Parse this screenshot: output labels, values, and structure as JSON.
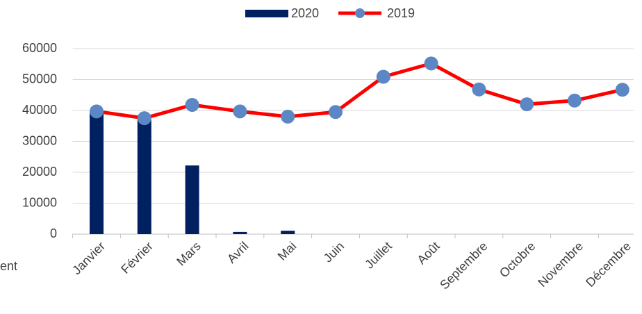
{
  "chart_data": {
    "type": "bar_line",
    "annotation": "ent",
    "categories": [
      "Janvier",
      "Février",
      "Mars",
      "Avril",
      "Mai",
      "Juin",
      "Juillet",
      "Août",
      "Septembre",
      "Octobre",
      "Novembre",
      "Décembre"
    ],
    "series": [
      {
        "name": "2020",
        "type": "bar",
        "color": "#002060",
        "values": [
          39500,
          37100,
          22200,
          700,
          1100,
          null,
          null,
          null,
          null,
          null,
          null,
          null
        ]
      },
      {
        "name": "2019",
        "type": "line",
        "color": "#ff0000",
        "marker_color": "#5b87c5",
        "values": [
          39700,
          37500,
          41800,
          39700,
          38000,
          39500,
          50900,
          55200,
          46800,
          42000,
          43200,
          46700
        ]
      }
    ],
    "ylim": [
      0,
      60000
    ],
    "yticks": [
      0,
      10000,
      20000,
      30000,
      40000,
      50000,
      60000
    ],
    "grid": true,
    "legend": "top"
  }
}
